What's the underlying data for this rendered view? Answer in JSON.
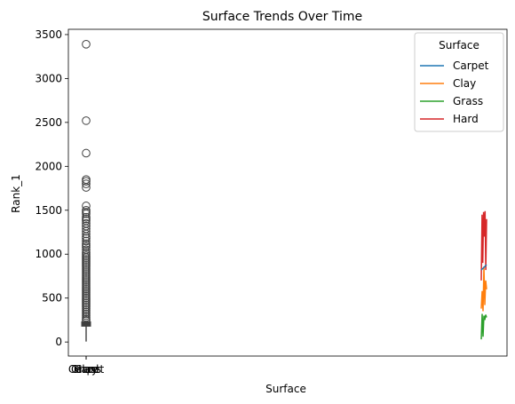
{
  "chart_data": {
    "type": "box+line",
    "title": "Surface Trends Over Time",
    "xlabel": "Surface",
    "ylabel": "Rank_1",
    "ylim": [
      -160,
      3560
    ],
    "yticks": [
      0,
      500,
      1000,
      1500,
      2000,
      2500,
      3000,
      3500
    ],
    "xtick_labels": [
      "Carpet",
      "Clay",
      "Grass",
      "Hard"
    ],
    "grid": false,
    "legend": {
      "title": "Surface",
      "placement": "top-right",
      "entries": [
        {
          "name": "Carpet",
          "color": "#1f77b4"
        },
        {
          "name": "Clay",
          "color": "#ff7f0e"
        },
        {
          "name": "Grass",
          "color": "#2ca02c"
        },
        {
          "name": "Hard",
          "color": "#d62728"
        }
      ]
    },
    "box": {
      "whisker_low": 5,
      "q1": 180,
      "median": 200,
      "q3": 230,
      "outliers": [
        3390,
        2520,
        2150,
        1850,
        1830,
        1800,
        1760,
        1550,
        1500,
        1480,
        1460,
        1420,
        1400,
        1380,
        1350,
        1320,
        1290,
        1260,
        1230,
        1200,
        1180,
        1150,
        1120,
        1100,
        1080,
        1050,
        1020,
        1000,
        980,
        960,
        940,
        920,
        900,
        880,
        860,
        840,
        820,
        800,
        780,
        760,
        740,
        720,
        700,
        680,
        660,
        640,
        620,
        600,
        580,
        560,
        540,
        520,
        500,
        480,
        460,
        440,
        420,
        400,
        380,
        360,
        340,
        320,
        300,
        280,
        260,
        245
      ]
    },
    "series": [
      {
        "name": "Grass",
        "color": "#2ca02c",
        "values": [
          30,
          320,
          60,
          300,
          250,
          310,
          280
        ]
      },
      {
        "name": "Clay",
        "color": "#ff7f0e",
        "values": [
          380,
          580,
          350,
          860,
          420,
          700,
          600
        ]
      },
      {
        "name": "Hard",
        "color": "#d62728",
        "values": [
          700,
          1450,
          900,
          1480,
          1200,
          1490,
          820,
          1400
        ]
      },
      {
        "name": "Carpet",
        "color": "#1f77b4",
        "values": [
          820,
          880
        ]
      }
    ]
  }
}
